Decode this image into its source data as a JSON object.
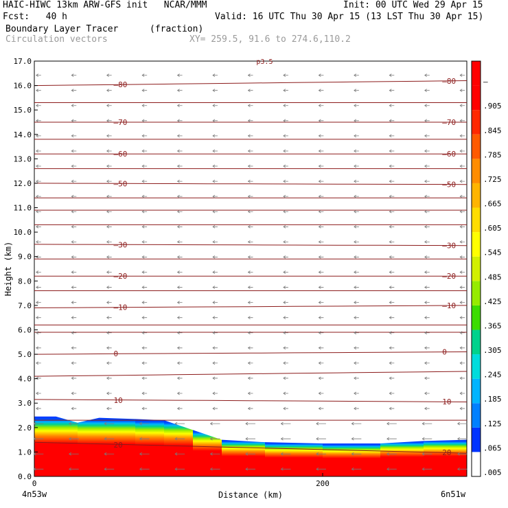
{
  "header": {
    "title_left": "HAIC-HIWC 13km ARW-GFS init   NCAR/MMM",
    "init": "Init: 00 UTC Wed 29 Apr 15",
    "fcst": "Fcst:   40 h",
    "valid": "Valid: 16 UTC Thu 30 Apr 15 (13 LST Thu 30 Apr 15)",
    "field_name": "Boundary Layer Tracer",
    "field_units": "(fraction)",
    "vector_name": "Circulation vectors",
    "xy_range": "XY= 259.5, 91.6 to 274.6,110.2"
  },
  "chart_data": {
    "type": "heatmap",
    "title": "Boundary Layer Tracer",
    "xlabel": "Distance (km)",
    "ylabel": "Height (km)",
    "xlim": [
      0,
      300
    ],
    "ylim": [
      0,
      17
    ],
    "x_ticks": [
      "0",
      "200"
    ],
    "x_end_labels": {
      "left": "4n53w",
      "right": "6n51w"
    },
    "y_ticks": [
      "0.0",
      "1.0",
      "2.0",
      "3.0",
      "4.0",
      "5.0",
      "6.0",
      "7.0",
      "8.0",
      "9.0",
      "10.0",
      "11.0",
      "12.0",
      "13.0",
      "14.0",
      "15.0",
      "16.0",
      "17.0"
    ],
    "colorbar": {
      "labels": [
        ".005",
        ".065",
        ".125",
        ".185",
        ".245",
        ".305",
        ".365",
        ".425",
        ".485",
        ".545",
        ".605",
        ".665",
        ".725",
        ".785",
        ".845",
        ".905",
        "–"
      ],
      "colors": [
        "#ffffff",
        "#0033ff",
        "#0080ff",
        "#00b4ff",
        "#00dcdc",
        "#00d28c",
        "#3cdc00",
        "#96eb00",
        "#d2f000",
        "#ffff00",
        "#ffdc00",
        "#ffb400",
        "#ff8c00",
        "#ff5a00",
        "#ff2800",
        "#ff0000",
        "#ff0000"
      ]
    },
    "tracer_top_km": [
      [
        0,
        2.45
      ],
      [
        15,
        2.45
      ],
      [
        30,
        2.2
      ],
      [
        45,
        2.4
      ],
      [
        70,
        2.35
      ],
      [
        90,
        2.3
      ],
      [
        110,
        1.9
      ],
      [
        130,
        1.5
      ],
      [
        160,
        1.4
      ],
      [
        200,
        1.35
      ],
      [
        240,
        1.35
      ],
      [
        270,
        1.45
      ],
      [
        300,
        1.5
      ]
    ],
    "temperature_contours": {
      "color": "#8b1a1a",
      "lines": [
        {
          "label": "-80",
          "y": [
            16.0,
            16.2
          ]
        },
        {
          "label": null,
          "y": [
            15.3,
            15.3
          ]
        },
        {
          "label": "-70",
          "y": [
            14.5,
            14.5
          ]
        },
        {
          "label": null,
          "y": [
            13.8,
            13.8
          ]
        },
        {
          "label": "-60",
          "y": [
            13.2,
            13.2
          ]
        },
        {
          "label": null,
          "y": [
            12.6,
            12.6
          ]
        },
        {
          "label": "-50",
          "y": [
            12.0,
            11.95
          ]
        },
        {
          "label": null,
          "y": [
            11.4,
            11.4
          ]
        },
        {
          "label": null,
          "y": [
            10.9,
            10.9
          ]
        },
        {
          "label": null,
          "y": [
            10.3,
            10.3
          ]
        },
        {
          "label": "-30",
          "y": [
            9.5,
            9.45
          ]
        },
        {
          "label": null,
          "y": [
            8.9,
            8.9
          ]
        },
        {
          "label": "-20",
          "y": [
            8.2,
            8.2
          ]
        },
        {
          "label": null,
          "y": [
            7.6,
            7.6
          ]
        },
        {
          "label": "-10",
          "y": [
            6.9,
            7.0
          ]
        },
        {
          "label": null,
          "y": [
            6.2,
            6.2
          ]
        },
        {
          "label": null,
          "y": [
            5.9,
            5.9
          ]
        },
        {
          "label": "0",
          "y": [
            5.0,
            5.1
          ]
        },
        {
          "label": null,
          "y": [
            4.1,
            4.3
          ]
        },
        {
          "label": "10",
          "y": [
            3.15,
            3.05
          ]
        },
        {
          "label": null,
          "y": [
            2.3,
            2.3
          ]
        },
        {
          "label": "20",
          "y": [
            1.4,
            0.95
          ]
        }
      ]
    },
    "top_label": "p3.5"
  }
}
